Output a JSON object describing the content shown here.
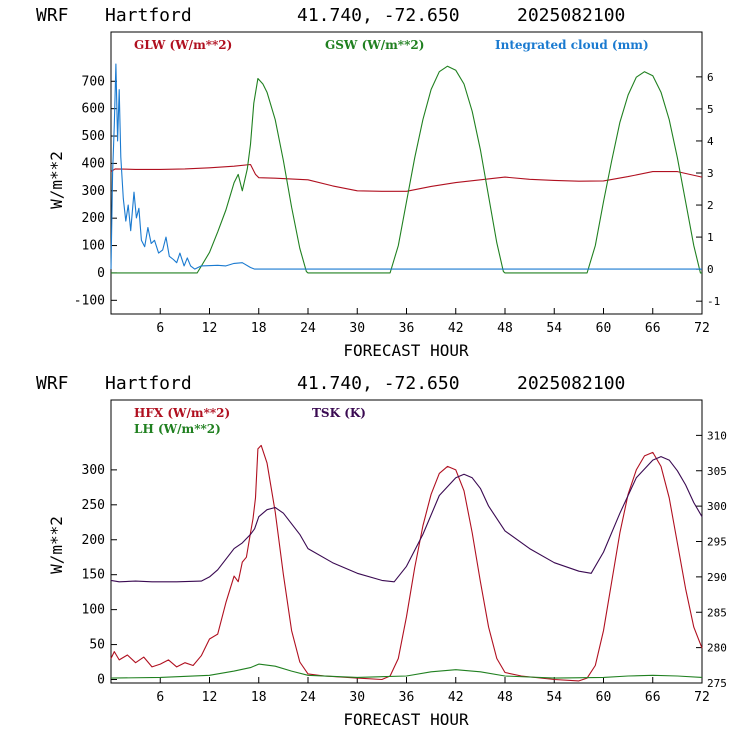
{
  "chart_data": [
    {
      "type": "line",
      "title": {
        "model": "WRF",
        "station": "Hartford",
        "coords": "41.740, -72.650",
        "run": "2025082100"
      },
      "xlabel": "FORECAST HOUR",
      "ylabel": "W/m**2",
      "xlim": [
        0,
        72
      ],
      "ylim": [
        -150,
        880
      ],
      "y2lim": [
        -1.4,
        7.4
      ],
      "xticks": [
        6,
        12,
        18,
        24,
        30,
        36,
        42,
        48,
        54,
        60,
        66,
        72
      ],
      "yticks": [
        -100,
        0,
        100,
        200,
        300,
        400,
        500,
        600,
        700
      ],
      "y2ticks": [
        -1,
        0,
        1,
        2,
        3,
        4,
        5,
        6
      ],
      "series": [
        {
          "name": "GLW (W/m**2)",
          "color": "#b01020",
          "axis": "left",
          "points": [
            [
              0,
              370
            ],
            [
              0.5,
              380
            ],
            [
              3,
              378
            ],
            [
              6,
              378
            ],
            [
              9,
              380
            ],
            [
              12,
              384
            ],
            [
              15,
              390
            ],
            [
              17,
              396
            ],
            [
              17.6,
              360
            ],
            [
              18,
              348
            ],
            [
              20,
              346
            ],
            [
              24,
              340
            ],
            [
              27,
              318
            ],
            [
              30,
              300
            ],
            [
              33,
              298
            ],
            [
              36,
              298
            ],
            [
              39,
              316
            ],
            [
              42,
              330
            ],
            [
              45,
              340
            ],
            [
              48,
              350
            ],
            [
              51,
              342
            ],
            [
              54,
              338
            ],
            [
              57,
              335
            ],
            [
              60,
              336
            ],
            [
              63,
              352
            ],
            [
              66,
              370
            ],
            [
              69,
              370
            ],
            [
              72,
              350
            ]
          ]
        },
        {
          "name": "GSW (W/m**2)",
          "color": "#208020",
          "axis": "left",
          "points": [
            [
              0,
              0
            ],
            [
              10.5,
              0
            ],
            [
              11,
              25
            ],
            [
              12,
              75
            ],
            [
              13,
              150
            ],
            [
              14,
              230
            ],
            [
              14.5,
              280
            ],
            [
              15,
              330
            ],
            [
              15.5,
              360
            ],
            [
              16,
              300
            ],
            [
              16.6,
              380
            ],
            [
              17,
              470
            ],
            [
              17.4,
              620
            ],
            [
              17.9,
              710
            ],
            [
              18.5,
              690
            ],
            [
              19,
              660
            ],
            [
              20,
              560
            ],
            [
              21,
              410
            ],
            [
              22,
              240
            ],
            [
              23,
              90
            ],
            [
              23.8,
              5
            ],
            [
              24,
              0
            ],
            [
              34,
              0
            ],
            [
              35,
              100
            ],
            [
              36,
              260
            ],
            [
              37,
              420
            ],
            [
              38,
              560
            ],
            [
              39,
              670
            ],
            [
              40,
              735
            ],
            [
              41,
              755
            ],
            [
              42,
              740
            ],
            [
              43,
              690
            ],
            [
              44,
              590
            ],
            [
              45,
              450
            ],
            [
              46,
              280
            ],
            [
              47,
              110
            ],
            [
              47.8,
              5
            ],
            [
              48,
              0
            ],
            [
              58,
              0
            ],
            [
              59,
              100
            ],
            [
              60,
              260
            ],
            [
              61,
              410
            ],
            [
              62,
              550
            ],
            [
              63,
              650
            ],
            [
              64,
              715
            ],
            [
              65,
              735
            ],
            [
              66,
              720
            ],
            [
              67,
              660
            ],
            [
              68,
              560
            ],
            [
              69,
              420
            ],
            [
              70,
              260
            ],
            [
              71,
              100
            ],
            [
              71.8,
              0
            ],
            [
              72,
              0
            ]
          ]
        },
        {
          "name": "Integrated cloud (mm)",
          "color": "#1a7ad0",
          "axis": "right",
          "points": [
            [
              0,
              0
            ],
            [
              0.2,
              3
            ],
            [
              0.4,
              4.5
            ],
            [
              0.6,
              6.4
            ],
            [
              0.8,
              4
            ],
            [
              1,
              5.6
            ],
            [
              1.2,
              3.5
            ],
            [
              1.5,
              2.2
            ],
            [
              1.8,
              1.5
            ],
            [
              2.1,
              2
            ],
            [
              2.4,
              1.2
            ],
            [
              2.8,
              2.4
            ],
            [
              3.1,
              1.6
            ],
            [
              3.4,
              1.9
            ],
            [
              3.7,
              0.9
            ],
            [
              4.1,
              0.7
            ],
            [
              4.5,
              1.3
            ],
            [
              4.9,
              0.8
            ],
            [
              5.3,
              0.9
            ],
            [
              5.8,
              0.5
            ],
            [
              6.3,
              0.6
            ],
            [
              6.7,
              1
            ],
            [
              7.1,
              0.4
            ],
            [
              7.6,
              0.3
            ],
            [
              8,
              0.2
            ],
            [
              8.4,
              0.5
            ],
            [
              8.9,
              0.1
            ],
            [
              9.3,
              0.35
            ],
            [
              9.7,
              0.1
            ],
            [
              10.2,
              0
            ],
            [
              11,
              0.1
            ],
            [
              13,
              0.12
            ],
            [
              14,
              0.1
            ],
            [
              15,
              0.18
            ],
            [
              16,
              0.2
            ],
            [
              17,
              0.05
            ],
            [
              17.5,
              0
            ],
            [
              72,
              0
            ]
          ]
        }
      ]
    },
    {
      "type": "line",
      "title": {
        "model": "WRF",
        "station": "Hartford",
        "coords": "41.740, -72.650",
        "run": "2025082100"
      },
      "xlabel": "FORECAST HOUR",
      "ylabel": "W/m**2",
      "xlim": [
        0,
        72
      ],
      "ylim": [
        -5,
        400
      ],
      "y2lim": [
        275,
        315
      ],
      "xticks": [
        6,
        12,
        18,
        24,
        30,
        36,
        42,
        48,
        54,
        60,
        66,
        72
      ],
      "yticks": [
        0,
        50,
        100,
        150,
        200,
        250,
        300
      ],
      "y2ticks": [
        275,
        280,
        285,
        290,
        295,
        300,
        305,
        310
      ],
      "series": [
        {
          "name": "HFX (W/m**2)",
          "color": "#b01020",
          "axis": "left",
          "points": [
            [
              0,
              30
            ],
            [
              0.4,
              40
            ],
            [
              1,
              28
            ],
            [
              2,
              35
            ],
            [
              3,
              24
            ],
            [
              4,
              32
            ],
            [
              5,
              18
            ],
            [
              6,
              22
            ],
            [
              7,
              28
            ],
            [
              8,
              18
            ],
            [
              9,
              24
            ],
            [
              10,
              20
            ],
            [
              11,
              34
            ],
            [
              12,
              58
            ],
            [
              13,
              65
            ],
            [
              14,
              110
            ],
            [
              15,
              148
            ],
            [
              15.5,
              140
            ],
            [
              16,
              168
            ],
            [
              16.5,
              175
            ],
            [
              17,
              210
            ],
            [
              17.3,
              230
            ],
            [
              17.6,
              260
            ],
            [
              17.9,
              330
            ],
            [
              18.3,
              335
            ],
            [
              19,
              310
            ],
            [
              20,
              240
            ],
            [
              21,
              150
            ],
            [
              22,
              70
            ],
            [
              23,
              25
            ],
            [
              24,
              8
            ],
            [
              26,
              5
            ],
            [
              30,
              2
            ],
            [
              33,
              0
            ],
            [
              34,
              5
            ],
            [
              35,
              30
            ],
            [
              36,
              90
            ],
            [
              37,
              160
            ],
            [
              38,
              220
            ],
            [
              39,
              265
            ],
            [
              40,
              295
            ],
            [
              41,
              305
            ],
            [
              42,
              300
            ],
            [
              43,
              270
            ],
            [
              44,
              210
            ],
            [
              45,
              140
            ],
            [
              46,
              75
            ],
            [
              47,
              30
            ],
            [
              48,
              10
            ],
            [
              50,
              5
            ],
            [
              54,
              0
            ],
            [
              57,
              -2
            ],
            [
              58,
              2
            ],
            [
              59,
              20
            ],
            [
              60,
              70
            ],
            [
              61,
              140
            ],
            [
              62,
              210
            ],
            [
              63,
              265
            ],
            [
              64,
              300
            ],
            [
              65,
              320
            ],
            [
              66,
              325
            ],
            [
              67,
              305
            ],
            [
              68,
              260
            ],
            [
              69,
              195
            ],
            [
              70,
              130
            ],
            [
              71,
              75
            ],
            [
              72,
              45
            ]
          ]
        },
        {
          "name": "LH (W/m**2)",
          "color": "#208020",
          "axis": "left",
          "points": [
            [
              0,
              2
            ],
            [
              6,
              3
            ],
            [
              12,
              6
            ],
            [
              15,
              12
            ],
            [
              17,
              17
            ],
            [
              18,
              22
            ],
            [
              20,
              19
            ],
            [
              22,
              12
            ],
            [
              24,
              6
            ],
            [
              30,
              3
            ],
            [
              36,
              5
            ],
            [
              39,
              11
            ],
            [
              42,
              14
            ],
            [
              45,
              11
            ],
            [
              48,
              5
            ],
            [
              54,
              2
            ],
            [
              60,
              3
            ],
            [
              63,
              5
            ],
            [
              66,
              6
            ],
            [
              69,
              5
            ],
            [
              72,
              3
            ]
          ]
        },
        {
          "name": "TSK (K)",
          "color": "#3a0a52",
          "axis": "right",
          "points": [
            [
              0,
              289.5
            ],
            [
              1,
              289.3
            ],
            [
              3,
              289.4
            ],
            [
              5,
              289.3
            ],
            [
              8,
              289.3
            ],
            [
              11,
              289.4
            ],
            [
              12,
              290
            ],
            [
              13,
              291
            ],
            [
              14,
              292.5
            ],
            [
              15,
              294
            ],
            [
              16,
              294.8
            ],
            [
              17,
              296
            ],
            [
              17.5,
              296.8
            ],
            [
              18,
              298.5
            ],
            [
              19,
              299.5
            ],
            [
              20,
              299.8
            ],
            [
              21,
              299
            ],
            [
              22,
              297.5
            ],
            [
              23,
              296
            ],
            [
              24,
              294
            ],
            [
              27,
              292
            ],
            [
              30,
              290.5
            ],
            [
              33,
              289.5
            ],
            [
              34.5,
              289.3
            ],
            [
              36,
              291.5
            ],
            [
              38,
              296
            ],
            [
              40,
              301.5
            ],
            [
              42,
              304
            ],
            [
              43,
              304.5
            ],
            [
              44,
              304
            ],
            [
              45,
              302.5
            ],
            [
              46,
              300
            ],
            [
              48,
              296.5
            ],
            [
              51,
              294
            ],
            [
              54,
              292
            ],
            [
              57,
              290.8
            ],
            [
              58.5,
              290.5
            ],
            [
              60,
              293.5
            ],
            [
              62,
              299
            ],
            [
              64,
              304
            ],
            [
              66,
              306.5
            ],
            [
              67,
              307
            ],
            [
              68,
              306.5
            ],
            [
              69,
              305
            ],
            [
              70,
              303
            ],
            [
              71,
              300.5
            ],
            [
              72,
              298.5
            ]
          ]
        }
      ]
    }
  ]
}
